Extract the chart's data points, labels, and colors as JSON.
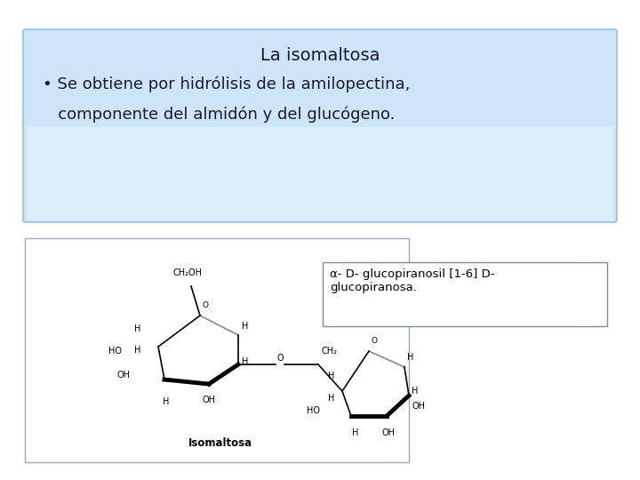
{
  "title": "La isomaltosa",
  "bullet1": "• Se obtiene por hidrólisis de la amilopectina,",
  "bullet2": "   componente del almidón y del glucógeno.",
  "annotation": "α- D- glucopiranosil [1-6] D-\nglucopiranosa.",
  "bg_color": "#ffffff",
  "box_fill_top": "#c5dff7",
  "box_fill_bottom": "#e8f3fc",
  "box_edge": "#8ab4d8",
  "mol_edge": "#a0a8b8",
  "ann_edge": "#808898",
  "title_fs": 14,
  "body_fs": 13,
  "ann_fs": 9.5,
  "mol_fs": 7.0
}
